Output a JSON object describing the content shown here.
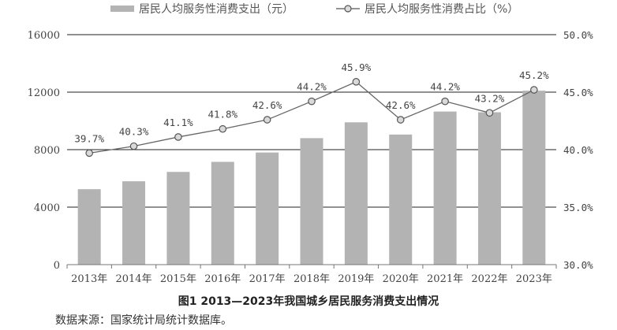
{
  "chart_data": {
    "type": "bar",
    "categories": [
      "2013年",
      "2014年",
      "2015年",
      "2016年",
      "2017年",
      "2018年",
      "2019年",
      "2020年",
      "2021年",
      "2022年",
      "2023年"
    ],
    "series": [
      {
        "name": "居民人均服务性消费支出（元）",
        "type": "bar",
        "axis": "left",
        "color": "#b3b3b3",
        "values": [
          5250,
          5800,
          6450,
          7150,
          7800,
          8800,
          9900,
          9050,
          10650,
          10600,
          12100
        ]
      },
      {
        "name": "居民人均服务性消费占比（%）",
        "type": "line",
        "axis": "right",
        "color": "#666666",
        "values": [
          39.7,
          40.3,
          41.1,
          41.8,
          42.6,
          44.2,
          45.9,
          42.6,
          44.2,
          43.2,
          45.2
        ],
        "labels": [
          "39.7%",
          "40.3%",
          "41.1%",
          "41.8%",
          "42.6%",
          "44.2%",
          "45.9%",
          "42.6%",
          "44.2%",
          "43.2%",
          "45.2%"
        ]
      }
    ],
    "ylim": [
      0,
      16000
    ],
    "yticks": [
      "0",
      "4000",
      "8000",
      "12000",
      "16000"
    ],
    "y2lim": [
      30,
      50
    ],
    "y2ticks": [
      "30.0%",
      "35.0%",
      "40.0%",
      "45.0%",
      "50.0%"
    ],
    "legend_position": "top",
    "grid": true
  },
  "caption": "图1 2013—2023年我国城乡居民服务消费支出情况",
  "source_note": "数据来源：国家统计局统计数据库。"
}
